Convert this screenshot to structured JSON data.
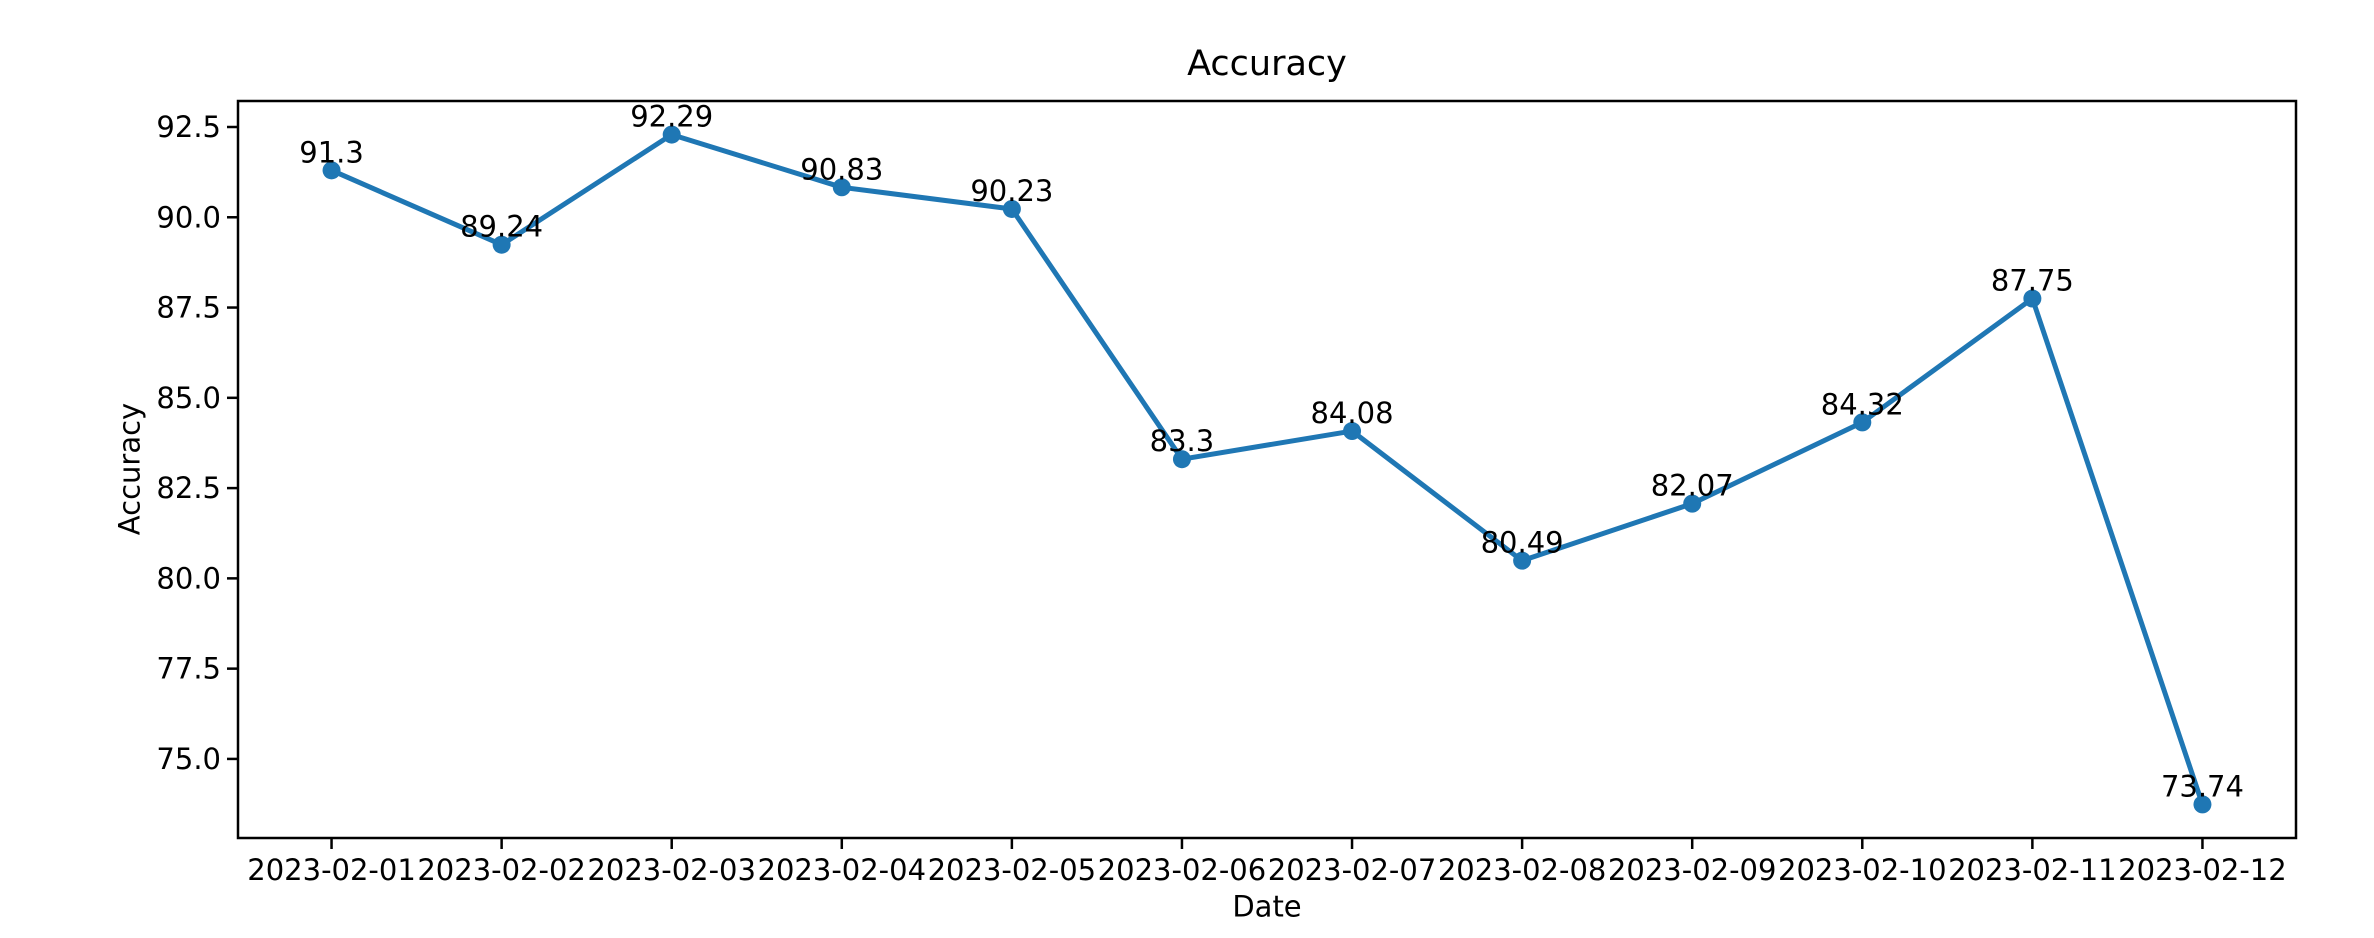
{
  "chart_data": {
    "type": "line",
    "title": "Accuracy",
    "xlabel": "Date",
    "ylabel": "Accuracy",
    "x": [
      "2023-02-01",
      "2023-02-02",
      "2023-02-03",
      "2023-02-04",
      "2023-02-05",
      "2023-02-06",
      "2023-02-07",
      "2023-02-08",
      "2023-02-09",
      "2023-02-10",
      "2023-02-11",
      "2023-02-12"
    ],
    "values": [
      91.3,
      89.24,
      92.29,
      90.83,
      90.23,
      83.3,
      84.08,
      80.49,
      82.07,
      84.32,
      87.75,
      73.74
    ],
    "point_labels": [
      "91.3",
      "89.24",
      "92.29",
      "90.83",
      "90.23",
      "83.3",
      "84.08",
      "80.49",
      "82.07",
      "84.32",
      "87.75",
      "73.74"
    ],
    "yticks": [
      75.0,
      77.5,
      80.0,
      82.5,
      85.0,
      87.5,
      90.0,
      92.5
    ],
    "ytick_labels": [
      "75.0",
      "77.5",
      "80.0",
      "82.5",
      "85.0",
      "87.5",
      "90.0",
      "92.5"
    ],
    "ylim": [
      72.81,
      93.22
    ],
    "xlim": [
      -0.55,
      11.55
    ],
    "grid": false,
    "legend": null,
    "marker": "o",
    "line_color": "#1f77b4",
    "text_color": "#000000",
    "spine_color": "#000000",
    "background_color": "#ffffff"
  }
}
